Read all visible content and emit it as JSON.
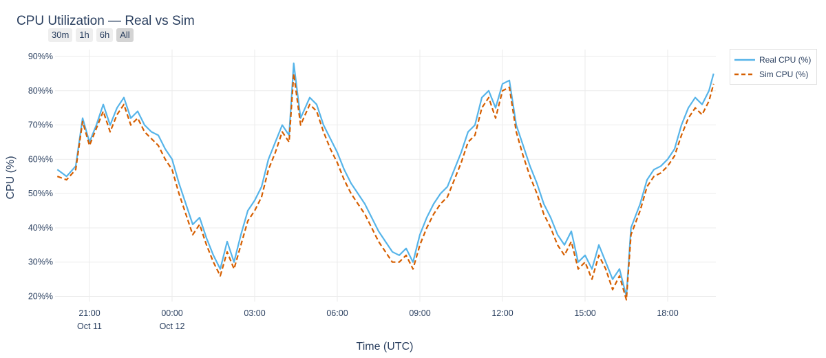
{
  "chart_data": {
    "type": "line",
    "title": "CPU Utilization — Real vs Sim",
    "xlabel": "Time (UTC)",
    "ylabel": "CPU (%)",
    "ylim": [
      18.5,
      92
    ],
    "yticks": [
      "20%%",
      "30%%",
      "40%%",
      "50%%",
      "60%%",
      "70%%",
      "80%%",
      "90%%"
    ],
    "ytick_values": [
      20,
      30,
      40,
      50,
      60,
      70,
      80,
      90
    ],
    "x_range": [
      "2024-10-11 19:45",
      "2024-10-12 19:45"
    ],
    "xticks": [
      {
        "time": "2024-10-11 21:00",
        "line1": "21:00",
        "line2": "Oct 11"
      },
      {
        "time": "2024-10-12 00:00",
        "line1": "00:00",
        "line2": "Oct 12"
      },
      {
        "time": "2024-10-12 03:00",
        "line1": "03:00",
        "line2": ""
      },
      {
        "time": "2024-10-12 06:00",
        "line1": "06:00",
        "line2": ""
      },
      {
        "time": "2024-10-12 09:00",
        "line1": "09:00",
        "line2": ""
      },
      {
        "time": "2024-10-12 12:00",
        "line1": "12:00",
        "line2": ""
      },
      {
        "time": "2024-10-12 15:00",
        "line1": "15:00",
        "line2": ""
      },
      {
        "time": "2024-10-12 18:00",
        "line1": "18:00",
        "line2": ""
      }
    ],
    "grid": true,
    "legend_placement": "top-right, outside plot",
    "x": [
      "2024-10-11 19:50",
      "2024-10-11 20:10",
      "2024-10-11 20:30",
      "2024-10-11 20:45",
      "2024-10-11 21:00",
      "2024-10-11 21:15",
      "2024-10-11 21:30",
      "2024-10-11 21:45",
      "2024-10-11 22:00",
      "2024-10-11 22:15",
      "2024-10-11 22:30",
      "2024-10-11 22:45",
      "2024-10-11 23:00",
      "2024-10-11 23:15",
      "2024-10-11 23:30",
      "2024-10-11 23:45",
      "2024-10-12 00:00",
      "2024-10-12 00:15",
      "2024-10-12 00:30",
      "2024-10-12 00:45",
      "2024-10-12 01:00",
      "2024-10-12 01:15",
      "2024-10-12 01:30",
      "2024-10-12 01:45",
      "2024-10-12 02:00",
      "2024-10-12 02:15",
      "2024-10-12 02:30",
      "2024-10-12 02:45",
      "2024-10-12 03:00",
      "2024-10-12 03:15",
      "2024-10-12 03:30",
      "2024-10-12 03:45",
      "2024-10-12 04:00",
      "2024-10-12 04:15",
      "2024-10-12 04:25",
      "2024-10-12 04:40",
      "2024-10-12 05:00",
      "2024-10-12 05:15",
      "2024-10-12 05:30",
      "2024-10-12 05:45",
      "2024-10-12 06:00",
      "2024-10-12 06:15",
      "2024-10-12 06:30",
      "2024-10-12 06:45",
      "2024-10-12 07:00",
      "2024-10-12 07:15",
      "2024-10-12 07:30",
      "2024-10-12 07:45",
      "2024-10-12 08:00",
      "2024-10-12 08:15",
      "2024-10-12 08:30",
      "2024-10-12 08:45",
      "2024-10-12 09:00",
      "2024-10-12 09:15",
      "2024-10-12 09:30",
      "2024-10-12 09:45",
      "2024-10-12 10:00",
      "2024-10-12 10:15",
      "2024-10-12 10:30",
      "2024-10-12 10:45",
      "2024-10-12 11:00",
      "2024-10-12 11:15",
      "2024-10-12 11:30",
      "2024-10-12 11:45",
      "2024-10-12 12:00",
      "2024-10-12 12:15",
      "2024-10-12 12:30",
      "2024-10-12 12:45",
      "2024-10-12 13:00",
      "2024-10-12 13:15",
      "2024-10-12 13:30",
      "2024-10-12 13:45",
      "2024-10-12 14:00",
      "2024-10-12 14:15",
      "2024-10-12 14:30",
      "2024-10-12 14:45",
      "2024-10-12 15:00",
      "2024-10-12 15:15",
      "2024-10-12 15:30",
      "2024-10-12 15:45",
      "2024-10-12 16:00",
      "2024-10-12 16:15",
      "2024-10-12 16:30",
      "2024-10-12 16:40",
      "2024-10-12 17:00",
      "2024-10-12 17:15",
      "2024-10-12 17:30",
      "2024-10-12 17:45",
      "2024-10-12 18:00",
      "2024-10-12 18:15",
      "2024-10-12 18:30",
      "2024-10-12 18:45",
      "2024-10-12 19:00",
      "2024-10-12 19:15",
      "2024-10-12 19:30",
      "2024-10-12 19:40"
    ],
    "series": [
      {
        "name": "Real CPU (%)",
        "color": "#56b4e9",
        "dash": "solid",
        "values": [
          57,
          55,
          58,
          72,
          65,
          70,
          76,
          70,
          75,
          78,
          72,
          74,
          70,
          68,
          67,
          63,
          60,
          53,
          47,
          41,
          43,
          37,
          32,
          28,
          36,
          30,
          38,
          45,
          48,
          52,
          60,
          65,
          70,
          67,
          88,
          72,
          78,
          76,
          70,
          66,
          62,
          57,
          53,
          50,
          47,
          43,
          39,
          36,
          33,
          32,
          34,
          30,
          38,
          43,
          47,
          50,
          52,
          57,
          62,
          68,
          70,
          78,
          80,
          75,
          82,
          83,
          70,
          64,
          58,
          53,
          47,
          43,
          38,
          35,
          39,
          30,
          32,
          28,
          35,
          30,
          25,
          28,
          20,
          40,
          47,
          54,
          57,
          58,
          60,
          63,
          70,
          75,
          78,
          76,
          80,
          85
        ]
      },
      {
        "name": "Sim CPU (%)",
        "color": "#d55e00",
        "dash": "dashed",
        "values": [
          55,
          54,
          57,
          71,
          64,
          69,
          74,
          68,
          73,
          76,
          70,
          72,
          68,
          66,
          64,
          60,
          57,
          50,
          44,
          38,
          41,
          35,
          30,
          26,
          33,
          28,
          35,
          42,
          45,
          49,
          57,
          62,
          68,
          65,
          85,
          70,
          76,
          74,
          68,
          63,
          59,
          54,
          50,
          47,
          44,
          40,
          36,
          33,
          30,
          30,
          32,
          28,
          35,
          40,
          44,
          47,
          49,
          54,
          59,
          65,
          67,
          75,
          78,
          72,
          80,
          81,
          68,
          61,
          55,
          50,
          44,
          40,
          35,
          32,
          36,
          28,
          30,
          25,
          32,
          28,
          22,
          26,
          19,
          38,
          45,
          52,
          55,
          56,
          58,
          61,
          67,
          72,
          75,
          73,
          77,
          82
        ]
      }
    ]
  },
  "range_buttons": [
    {
      "label": "30m",
      "active": false
    },
    {
      "label": "1h",
      "active": false
    },
    {
      "label": "6h",
      "active": false
    },
    {
      "label": "All",
      "active": true
    }
  ]
}
